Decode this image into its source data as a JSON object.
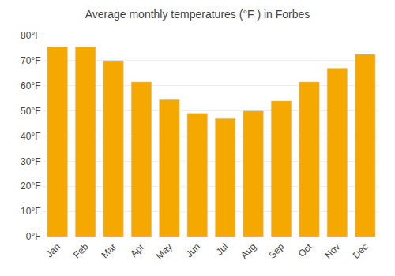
{
  "chart_data": {
    "type": "bar",
    "title": "Average monthly temperatures (°F ) in Forbes",
    "categories": [
      "Jan",
      "Feb",
      "Mar",
      "Apr",
      "May",
      "Jun",
      "Jul",
      "Aug",
      "Sep",
      "Oct",
      "Nov",
      "Dec"
    ],
    "values": [
      75.5,
      75.5,
      70.0,
      61.5,
      54.5,
      49.0,
      47.0,
      50.0,
      54.0,
      61.5,
      67.0,
      72.5
    ],
    "color": "#F5A800",
    "ylim": [
      0,
      80
    ],
    "yticks": [
      {
        "value": 0,
        "label": "0°F"
      },
      {
        "value": 10,
        "label": "10°F"
      },
      {
        "value": 20,
        "label": "20°F"
      },
      {
        "value": 30,
        "label": "30°F"
      },
      {
        "value": 40,
        "label": "40°F"
      },
      {
        "value": 50,
        "label": "50°F"
      },
      {
        "value": 60,
        "label": "60°F"
      },
      {
        "value": 70,
        "label": "70°F"
      },
      {
        "value": 80,
        "label": "80°F"
      }
    ],
    "grid": true
  }
}
